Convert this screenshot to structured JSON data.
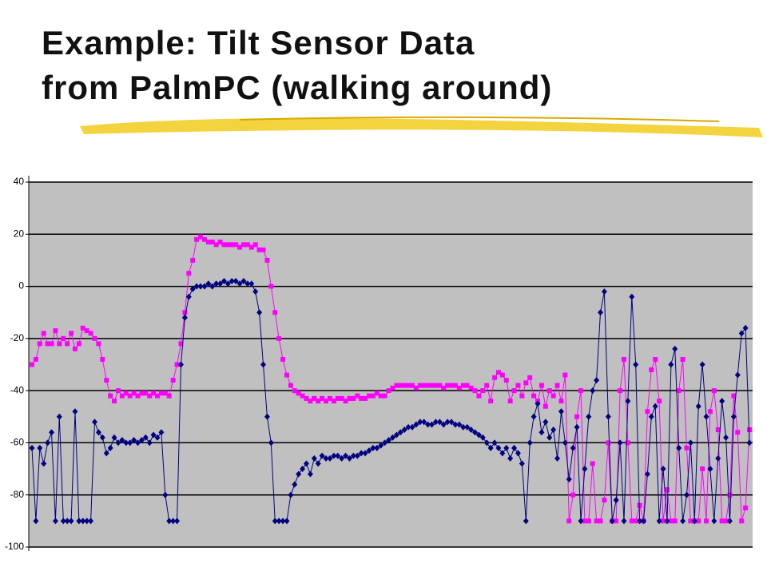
{
  "chart_data": {
    "type": "line",
    "title_lines": [
      "Example: Tilt Sensor Data",
      "from PalmPC (walking around)"
    ],
    "ylim": [
      -100,
      40
    ],
    "yticks": [
      -100,
      -80,
      -60,
      -40,
      -20,
      0,
      20,
      40
    ],
    "grid": true,
    "series": [
      {
        "color": "#ff00ff",
        "marker": "square",
        "values": [
          -30,
          -28,
          -22,
          -18,
          -22,
          -22,
          -17,
          -22,
          -20,
          -22,
          -18,
          -24,
          -22,
          -16,
          -17,
          -18,
          -20,
          -22,
          -28,
          -36,
          -42,
          -44,
          -40,
          -42,
          -41,
          -42,
          -41,
          -42,
          -41,
          -41,
          -42,
          -41,
          -42,
          -41,
          -41,
          -42,
          -36,
          -30,
          -22,
          -10,
          5,
          10,
          18,
          19,
          18,
          17,
          17,
          16,
          17,
          16,
          16,
          16,
          16,
          15,
          16,
          16,
          15,
          16,
          14,
          14,
          10,
          0,
          -10,
          -20,
          -28,
          -34,
          -38,
          -40,
          -41,
          -42,
          -43,
          -44,
          -43,
          -44,
          -43,
          -44,
          -43,
          -44,
          -43,
          -43,
          -44,
          -43,
          -43,
          -42,
          -43,
          -43,
          -42,
          -42,
          -41,
          -42,
          -42,
          -40,
          -39,
          -38,
          -38,
          -38,
          -38,
          -38,
          -39,
          -38,
          -38,
          -38,
          -38,
          -38,
          -38,
          -39,
          -38,
          -38,
          -38,
          -39,
          -38,
          -38,
          -39,
          -40,
          -42,
          -40,
          -38,
          -44,
          -35,
          -33,
          -34,
          -36,
          -44,
          -40,
          -38,
          -42,
          -37,
          -35,
          -42,
          -44,
          -38,
          -46,
          -40,
          -42,
          -38,
          -44,
          -34,
          -90,
          -80,
          -50,
          -40,
          -90,
          -90,
          -68,
          -90,
          -90,
          -82,
          -60,
          -90,
          -90,
          -40,
          -28,
          -60,
          -90,
          -90,
          -84,
          -90,
          -48,
          -32,
          -28,
          -44,
          -90,
          -78,
          -90,
          -90,
          -40,
          -28,
          -62,
          -90,
          -90,
          -90,
          -70,
          -90,
          -48,
          -40,
          -55,
          -90,
          -90,
          -80,
          -42,
          -56,
          -90,
          -85,
          -55
        ]
      },
      {
        "color": "#000080",
        "marker": "diamond",
        "values": [
          -62,
          -90,
          -62,
          -68,
          -60,
          -56,
          -90,
          -50,
          -90,
          -90,
          -90,
          -48,
          -90,
          -90,
          -90,
          -90,
          -52,
          -56,
          -58,
          -64,
          -62,
          -58,
          -60,
          -59,
          -60,
          -60,
          -59,
          -60,
          -59,
          -58,
          -60,
          -57,
          -58,
          -56,
          -80,
          -90,
          -90,
          -90,
          -30,
          -12,
          -4,
          -1,
          0,
          0,
          0,
          1,
          0,
          1,
          1,
          2,
          1,
          2,
          2,
          1,
          2,
          1,
          1,
          -2,
          -10,
          -30,
          -50,
          -60,
          -90,
          -90,
          -90,
          -90,
          -80,
          -76,
          -72,
          -70,
          -68,
          -72,
          -66,
          -68,
          -65,
          -66,
          -66,
          -65,
          -65,
          -66,
          -65,
          -66,
          -65,
          -65,
          -64,
          -64,
          -63,
          -62,
          -62,
          -61,
          -60,
          -59,
          -58,
          -57,
          -56,
          -55,
          -54,
          -54,
          -53,
          -52,
          -52,
          -53,
          -53,
          -52,
          -52,
          -53,
          -52,
          -52,
          -53,
          -53,
          -54,
          -54,
          -55,
          -56,
          -57,
          -58,
          -60,
          -62,
          -60,
          -62,
          -64,
          -62,
          -66,
          -62,
          -64,
          -68,
          -90,
          -60,
          -50,
          -45,
          -56,
          -52,
          -58,
          -55,
          -66,
          -48,
          -60,
          -74,
          -62,
          -54,
          -90,
          -70,
          -50,
          -40,
          -36,
          -10,
          -2,
          -50,
          -90,
          -82,
          -60,
          -90,
          -44,
          -4,
          -30,
          -90,
          -90,
          -72,
          -50,
          -46,
          -90,
          -70,
          -90,
          -30,
          -24,
          -62,
          -90,
          -80,
          -60,
          -90,
          -46,
          -30,
          -50,
          -70,
          -90,
          -66,
          -44,
          -58,
          -90,
          -50,
          -34,
          -18,
          -16,
          -60
        ]
      }
    ]
  }
}
